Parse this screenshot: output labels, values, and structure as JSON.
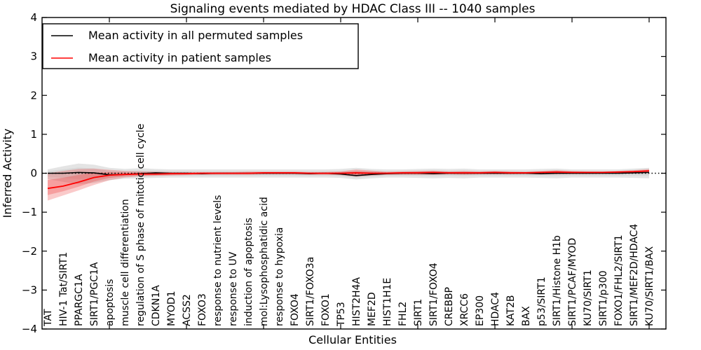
{
  "figure": {
    "title": "Signaling events mediated by HDAC Class III -- 1040 samples",
    "ylabel": "Inferred Activity",
    "xlabel": "Cellular Entities"
  },
  "legend": {
    "permuted_label": "Mean activity in all permuted samples",
    "patient_label": "Mean activity in patient samples"
  },
  "colors": {
    "permuted_line": "#000000",
    "patient_line": "#ff0000",
    "permuted_band": "#e4e4e4",
    "permuted_band_inner": "#d8d8d8",
    "patient_band": "#ee3a3a",
    "frame": "#000000"
  },
  "chart_data": {
    "type": "line",
    "title": "Signaling events mediated by HDAC Class III -- 1040 samples",
    "xlabel": "Cellular Entities",
    "ylabel": "Inferred Activity",
    "ylim": [
      -4,
      4
    ],
    "yticks": [
      "4",
      "3",
      "2",
      "1",
      "0",
      "−1",
      "−2",
      "−3",
      "−4"
    ],
    "ytick_values": [
      4,
      3,
      2,
      1,
      0,
      -1,
      -2,
      -3,
      -4
    ],
    "xtick_every": 5,
    "grid": false,
    "legend_position": "upper left",
    "zero_line": {
      "style": "dotted",
      "color": "#000000",
      "y": 0
    },
    "categories": [
      "TAT",
      "HIV-1 Tat/SIRT1",
      "PPARGC1A",
      "SIRT1/PGC1A",
      "apoptosis",
      "muscle cell differentiation",
      "regulation of S phase of mitotic cell cycle",
      "CDKN1A",
      "MYOD1",
      "ACSS2",
      "FOXO3",
      "response to nutrient levels",
      "response to UV",
      "induction of apoptosis",
      "mol:Lysophosphatidic acid",
      "response to hypoxia",
      "FOXO4",
      "SIRT1/FOXO3a",
      "FOXO1",
      "TP53",
      "HIST2H4A",
      "MEF2D",
      "HIST1H1E",
      "FHL2",
      "SIRT1",
      "SIRT1/FOXO4",
      "CREBBP",
      "XRCC6",
      "EP300",
      "HDAC4",
      "KAT2B",
      "BAX",
      "p53/SIRT1",
      "SIRT1/Histone H1b",
      "SIRT1/PCAF/MYOD",
      "KU70/SIRT1",
      "SIRT1/p300",
      "FOXO1/FHL2/SIRT1",
      "SIRT1/MEF2D/HDAC4",
      "KU70/SIRT1/BAX"
    ],
    "series": [
      {
        "name": "Mean activity in all permuted samples",
        "color": "#000000",
        "values": [
          0.0,
          0.0,
          0.02,
          0.01,
          -0.04,
          -0.03,
          -0.01,
          0.01,
          0.0,
          0.0,
          -0.01,
          0.0,
          0.0,
          0.0,
          0.0,
          0.0,
          0.0,
          -0.01,
          0.0,
          -0.02,
          -0.06,
          -0.03,
          -0.01,
          0.0,
          0.0,
          -0.01,
          0.0,
          0.0,
          0.0,
          0.0,
          0.0,
          0.0,
          -0.01,
          0.0,
          0.0,
          0.0,
          0.0,
          0.0,
          0.01,
          0.02
        ],
        "band_upper": [
          0.1,
          0.18,
          0.25,
          0.22,
          0.14,
          0.11,
          0.13,
          0.11,
          0.1,
          0.1,
          0.1,
          0.1,
          0.1,
          0.1,
          0.1,
          0.1,
          0.1,
          0.1,
          0.1,
          0.11,
          0.14,
          0.11,
          0.1,
          0.1,
          0.11,
          0.12,
          0.11,
          0.12,
          0.1,
          0.1,
          0.1,
          0.1,
          0.11,
          0.12,
          0.1,
          0.1,
          0.1,
          0.1,
          0.12,
          0.14
        ],
        "band_lower": [
          -0.15,
          -0.22,
          -0.28,
          -0.25,
          -0.18,
          -0.14,
          -0.13,
          -0.12,
          -0.11,
          -0.11,
          -0.11,
          -0.11,
          -0.11,
          -0.11,
          -0.11,
          -0.11,
          -0.11,
          -0.11,
          -0.11,
          -0.12,
          -0.16,
          -0.13,
          -0.11,
          -0.11,
          -0.12,
          -0.13,
          -0.12,
          -0.13,
          -0.11,
          -0.11,
          -0.11,
          -0.11,
          -0.12,
          -0.13,
          -0.11,
          -0.11,
          -0.11,
          -0.11,
          -0.12,
          -0.13
        ]
      },
      {
        "name": "Mean activity in patient samples",
        "color": "#ff0000",
        "values": [
          -0.39,
          -0.33,
          -0.23,
          -0.11,
          -0.05,
          -0.03,
          -0.02,
          -0.02,
          -0.01,
          -0.01,
          0.0,
          0.0,
          0.0,
          0.0,
          0.01,
          0.01,
          0.01,
          0.0,
          0.0,
          0.0,
          0.01,
          0.0,
          0.0,
          0.01,
          0.01,
          0.02,
          0.01,
          0.01,
          0.01,
          0.02,
          0.01,
          0.01,
          0.02,
          0.03,
          0.02,
          0.02,
          0.02,
          0.03,
          0.04,
          0.06
        ],
        "band_upper": [
          0.0,
          0.06,
          0.11,
          0.12,
          0.09,
          0.06,
          0.05,
          0.04,
          0.03,
          0.03,
          0.03,
          0.03,
          0.03,
          0.04,
          0.04,
          0.04,
          0.04,
          0.03,
          0.03,
          0.05,
          0.1,
          0.07,
          0.04,
          0.05,
          0.06,
          0.07,
          0.05,
          0.06,
          0.05,
          0.06,
          0.05,
          0.04,
          0.06,
          0.08,
          0.06,
          0.05,
          0.05,
          0.06,
          0.08,
          0.11
        ],
        "band_lower": [
          -0.7,
          -0.57,
          -0.44,
          -0.3,
          -0.18,
          -0.11,
          -0.08,
          -0.07,
          -0.06,
          -0.05,
          -0.04,
          -0.04,
          -0.04,
          -0.04,
          -0.03,
          -0.03,
          -0.03,
          -0.04,
          -0.04,
          -0.05,
          -0.09,
          -0.06,
          -0.04,
          -0.04,
          -0.04,
          -0.04,
          -0.03,
          -0.04,
          -0.03,
          -0.03,
          -0.03,
          -0.02,
          -0.03,
          -0.03,
          -0.02,
          -0.02,
          -0.01,
          -0.01,
          0.0,
          0.01
        ]
      }
    ]
  }
}
